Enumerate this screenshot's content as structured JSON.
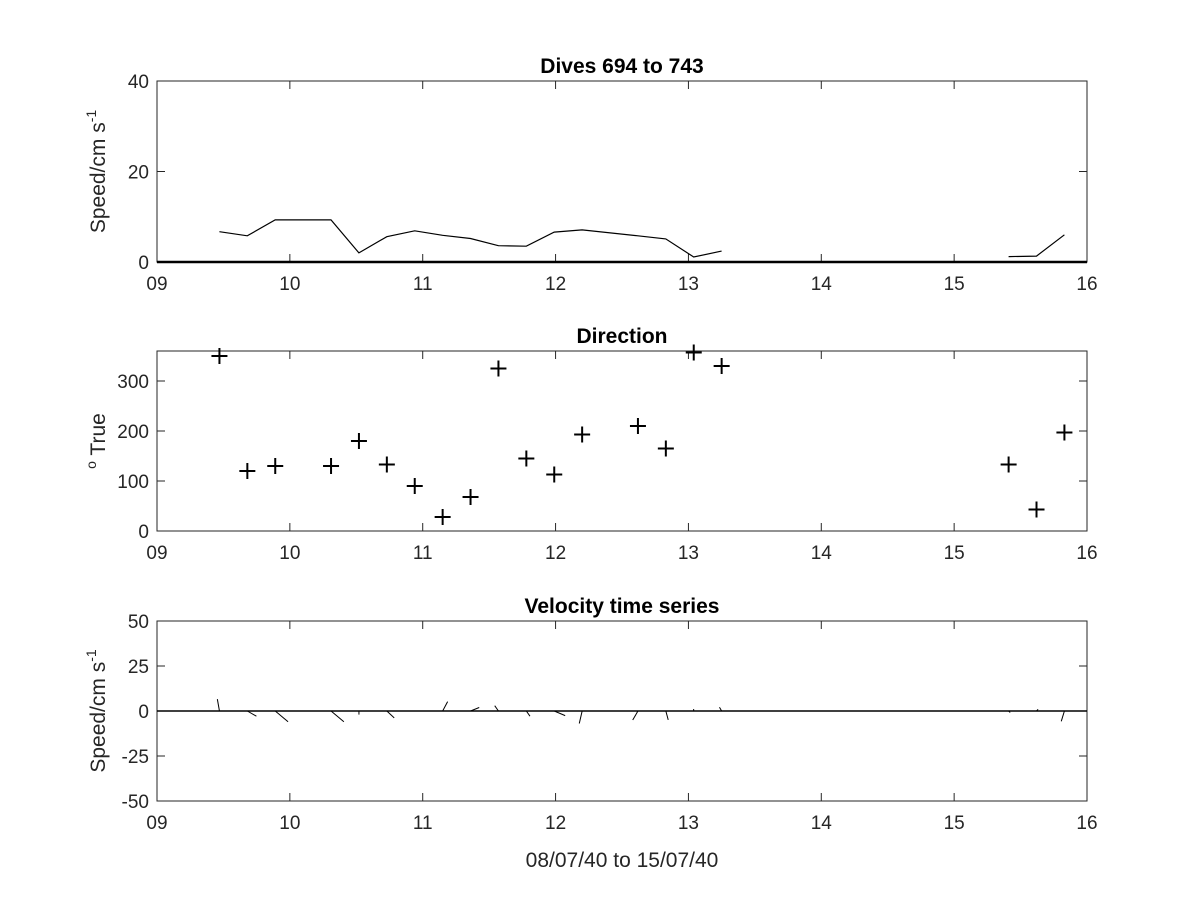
{
  "chart_data": [
    {
      "type": "line",
      "title": "Dives 694 to 743",
      "ylabel": "Speed/cm s",
      "ylabel_sup": "-1",
      "xlabel": "",
      "xlim": [
        9,
        16
      ],
      "ylim": [
        0,
        40
      ],
      "xticks": [
        9,
        10,
        11,
        12,
        13,
        14,
        15,
        16
      ],
      "xtick_labels": [
        "09",
        "10",
        "11",
        "12",
        "13",
        "14",
        "15",
        "16"
      ],
      "yticks": [
        0,
        20,
        40
      ],
      "ytick_labels": [
        "0",
        "20",
        "40"
      ],
      "series": [
        {
          "x": [
            9.47,
            9.68,
            9.89,
            10.31,
            10.52,
            10.73,
            10.94,
            11.15,
            11.36,
            11.57,
            11.78,
            11.99,
            12.2,
            12.62,
            12.83,
            13.04,
            13.25
          ],
          "values": [
            6.7,
            5.8,
            9.3,
            9.3,
            2.0,
            5.6,
            6.9,
            5.9,
            5.2,
            3.6,
            3.5,
            6.6,
            7.1,
            5.8,
            5.1,
            1.1,
            2.4
          ]
        },
        {
          "x": [
            15.41,
            15.62,
            15.83
          ],
          "values": [
            1.2,
            1.3,
            6.0
          ]
        }
      ]
    },
    {
      "type": "scatter",
      "title": "Direction",
      "ylabel": "True",
      "ylabel_sup": "o",
      "xlabel": "",
      "xlim": [
        9,
        16
      ],
      "ylim": [
        0,
        360
      ],
      "xticks": [
        9,
        10,
        11,
        12,
        13,
        14,
        15,
        16
      ],
      "xtick_labels": [
        "09",
        "10",
        "11",
        "12",
        "13",
        "14",
        "15",
        "16"
      ],
      "yticks": [
        0,
        100,
        200,
        300
      ],
      "ytick_labels": [
        "0",
        "100",
        "200",
        "300"
      ],
      "marker": "+",
      "x": [
        9.47,
        9.68,
        9.89,
        10.31,
        10.52,
        10.73,
        10.94,
        11.15,
        11.36,
        11.57,
        11.78,
        11.99,
        12.2,
        12.62,
        12.83,
        13.04,
        13.25,
        15.41,
        15.62,
        15.83
      ],
      "y": [
        350,
        120,
        130,
        130,
        180,
        133,
        90,
        28,
        68,
        325,
        145,
        113,
        193,
        210,
        165,
        357,
        330,
        133,
        43,
        197
      ]
    },
    {
      "type": "line",
      "title": "Velocity time series",
      "ylabel": "Speed/cm s",
      "ylabel_sup": "-1",
      "xlabel": "08/07/40 to 15/07/40",
      "xlim": [
        9,
        16
      ],
      "ylim": [
        -50,
        50
      ],
      "xticks": [
        9,
        10,
        11,
        12,
        13,
        14,
        15,
        16
      ],
      "xtick_labels": [
        "09",
        "10",
        "11",
        "12",
        "13",
        "14",
        "15",
        "16"
      ],
      "yticks": [
        -50,
        -25,
        0,
        25,
        50
      ],
      "ytick_labels": [
        "-50",
        "-25",
        "0",
        "25",
        "50"
      ],
      "vectors": {
        "x": [
          9.47,
          9.68,
          9.89,
          10.31,
          10.52,
          10.73,
          10.94,
          11.15,
          11.36,
          11.57,
          11.78,
          11.99,
          12.2,
          12.62,
          12.83,
          13.04,
          13.25,
          15.41,
          15.62,
          15.83
        ],
        "speed": [
          6.7,
          5.8,
          9.3,
          9.3,
          2.0,
          5.6,
          6.9,
          5.9,
          5.2,
          3.6,
          3.5,
          6.6,
          7.1,
          5.8,
          5.1,
          1.1,
          2.4,
          1.2,
          1.3,
          6.0
        ],
        "direction": [
          350,
          120,
          130,
          130,
          180,
          133,
          90,
          28,
          68,
          325,
          145,
          113,
          193,
          210,
          165,
          357,
          330,
          133,
          43,
          197
        ]
      }
    }
  ],
  "colors": {
    "line": "#000000",
    "axis": "#262626",
    "background": "#ffffff"
  }
}
